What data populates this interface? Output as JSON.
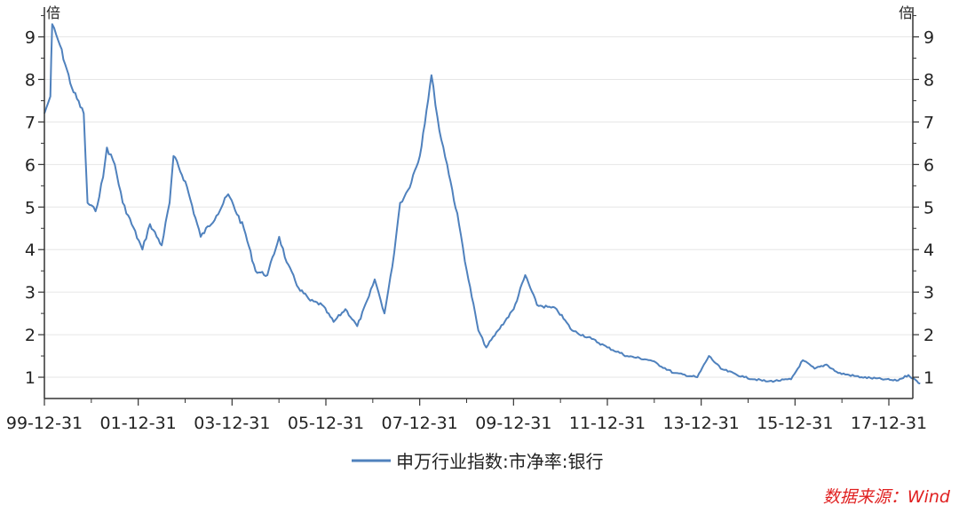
{
  "chart_data": {
    "type": "line",
    "y_unit_left": "倍",
    "y_unit_right": "倍",
    "ylim": [
      0.5,
      9.7
    ],
    "y_ticks": [
      1,
      2,
      3,
      4,
      5,
      6,
      7,
      8,
      9
    ],
    "x_tick_labels": [
      "99-12-31",
      "01-12-31",
      "03-12-31",
      "05-12-31",
      "07-12-31",
      "09-12-31",
      "11-12-31",
      "13-12-31",
      "15-12-31",
      "17-12-31"
    ],
    "x_range": [
      "1999-12-31",
      "2018-09-30"
    ],
    "grid": "horizontal",
    "legend_position": "bottom-center",
    "series": [
      {
        "name": "申万行业指数:市净率:银行",
        "color": "#4f81bd",
        "points": [
          [
            "1999-12-31",
            7.2
          ],
          [
            "2000-02-15",
            7.6
          ],
          [
            "2000-03-01",
            9.3
          ],
          [
            "2000-05-01",
            8.8
          ],
          [
            "2000-08-01",
            7.8
          ],
          [
            "2000-11-01",
            7.2
          ],
          [
            "2000-12-01",
            5.1
          ],
          [
            "2001-02-01",
            4.9
          ],
          [
            "2001-04-01",
            5.7
          ],
          [
            "2001-05-01",
            6.4
          ],
          [
            "2001-07-01",
            6.0
          ],
          [
            "2001-09-01",
            5.1
          ],
          [
            "2002-02-01",
            4.0
          ],
          [
            "2002-04-01",
            4.6
          ],
          [
            "2002-07-01",
            4.1
          ],
          [
            "2002-09-01",
            5.1
          ],
          [
            "2002-10-01",
            6.2
          ],
          [
            "2003-01-01",
            5.6
          ],
          [
            "2003-05-01",
            4.3
          ],
          [
            "2003-09-01",
            4.8
          ],
          [
            "2003-12-01",
            5.3
          ],
          [
            "2004-04-01",
            4.5
          ],
          [
            "2004-07-01",
            3.5
          ],
          [
            "2004-10-01",
            3.4
          ],
          [
            "2005-01-01",
            4.3
          ],
          [
            "2005-03-01",
            3.7
          ],
          [
            "2005-06-01",
            3.1
          ],
          [
            "2005-09-01",
            2.8
          ],
          [
            "2005-12-01",
            2.7
          ],
          [
            "2006-03-01",
            2.3
          ],
          [
            "2006-06-01",
            2.6
          ],
          [
            "2006-09-01",
            2.2
          ],
          [
            "2006-12-01",
            2.9
          ],
          [
            "2007-01-15",
            3.3
          ],
          [
            "2007-04-01",
            2.5
          ],
          [
            "2007-06-01",
            3.6
          ],
          [
            "2007-08-01",
            5.1
          ],
          [
            "2007-10-01",
            5.4
          ],
          [
            "2008-01-01",
            6.2
          ],
          [
            "2008-04-01",
            8.1
          ],
          [
            "2008-06-01",
            6.8
          ],
          [
            "2008-08-01",
            6.0
          ],
          [
            "2008-11-01",
            4.6
          ],
          [
            "2009-01-01",
            3.5
          ],
          [
            "2009-04-01",
            2.1
          ],
          [
            "2009-06-01",
            1.7
          ],
          [
            "2009-09-01",
            2.1
          ],
          [
            "2010-01-01",
            2.6
          ],
          [
            "2010-04-01",
            3.4
          ],
          [
            "2010-07-01",
            2.7
          ],
          [
            "2010-12-01",
            2.6
          ],
          [
            "2011-04-01",
            2.1
          ],
          [
            "2011-09-01",
            1.9
          ],
          [
            "2012-01-01",
            1.7
          ],
          [
            "2012-06-01",
            1.5
          ],
          [
            "2012-12-01",
            1.4
          ],
          [
            "2013-06-01",
            1.1
          ],
          [
            "2013-12-01",
            1.0
          ],
          [
            "2014-03-01",
            1.5
          ],
          [
            "2014-06-01",
            1.2
          ],
          [
            "2014-12-01",
            1.0
          ],
          [
            "2015-06-01",
            0.9
          ],
          [
            "2015-12-01",
            0.95
          ],
          [
            "2016-03-01",
            1.4
          ],
          [
            "2016-06-01",
            1.2
          ],
          [
            "2016-09-01",
            1.3
          ],
          [
            "2016-12-01",
            1.1
          ],
          [
            "2017-06-01",
            1.0
          ],
          [
            "2017-12-01",
            0.95
          ],
          [
            "2018-03-01",
            0.92
          ],
          [
            "2018-06-01",
            1.05
          ],
          [
            "2018-09-01",
            0.85
          ]
        ]
      }
    ]
  },
  "legend": {
    "label": "申万行业指数:市净率:银行"
  },
  "source": {
    "text": "数据来源：Wind"
  }
}
